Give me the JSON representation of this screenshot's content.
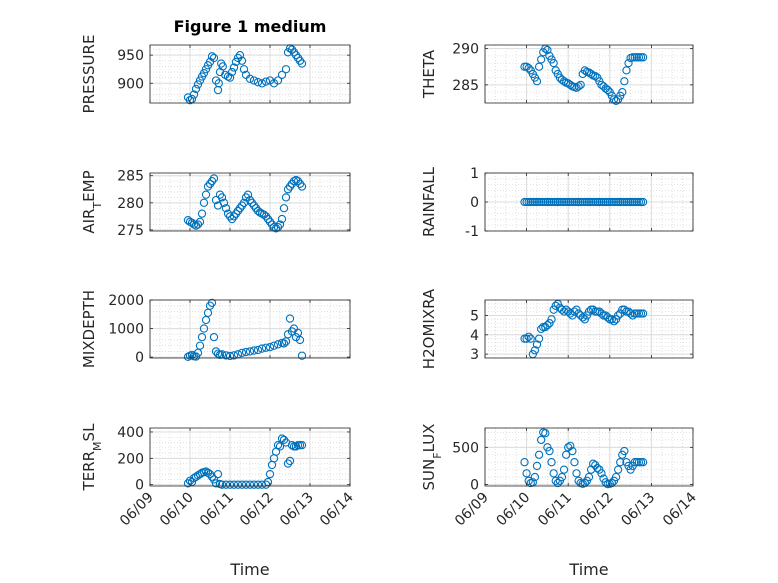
{
  "figure": {
    "title": "Figure 1 medium"
  },
  "chart_data": [
    {
      "type": "scatter",
      "title": "Figure 1 medium",
      "ylabel": "PRESSURE",
      "xlabel": "",
      "xlim": [
        0,
        5
      ],
      "ylim": [
        865,
        968
      ],
      "yticks": [
        900,
        950
      ],
      "ytick_labels": [
        "900",
        "950"
      ],
      "grid": true,
      "series": [
        {
          "x": [
            0.95,
            1.0,
            1.05,
            1.1,
            1.15,
            1.2,
            1.25,
            1.3,
            1.35,
            1.4,
            1.45,
            1.5,
            1.55,
            1.6,
            1.65,
            1.7,
            1.72,
            1.75,
            1.78,
            1.82,
            1.88,
            1.95,
            2.0,
            2.05,
            2.1,
            2.15,
            2.2,
            2.25,
            2.3,
            2.35,
            2.4,
            2.5,
            2.6,
            2.7,
            2.8,
            2.9,
            3.0,
            3.1,
            3.2,
            3.3,
            3.4,
            3.45,
            3.5,
            3.55,
            3.6,
            3.65,
            3.7,
            3.75,
            3.8
          ],
          "y": [
            875,
            870,
            872,
            880,
            890,
            898,
            905,
            912,
            918,
            925,
            932,
            938,
            948,
            945,
            905,
            888,
            900,
            920,
            935,
            930,
            915,
            912,
            910,
            920,
            928,
            938,
            945,
            950,
            940,
            925,
            915,
            908,
            905,
            902,
            900,
            903,
            905,
            900,
            905,
            915,
            925,
            955,
            962,
            960,
            955,
            950,
            945,
            940,
            935
          ]
        }
      ]
    },
    {
      "type": "scatter",
      "ylabel": "THETA",
      "xlabel": "",
      "xlim": [
        0,
        5
      ],
      "ylim": [
        282.5,
        290.5
      ],
      "yticks": [
        285,
        290
      ],
      "ytick_labels": [
        "285",
        "290"
      ],
      "grid": true,
      "series": [
        {
          "x": [
            0.95,
            1.0,
            1.05,
            1.1,
            1.15,
            1.2,
            1.25,
            1.3,
            1.35,
            1.4,
            1.45,
            1.5,
            1.55,
            1.6,
            1.65,
            1.7,
            1.75,
            1.8,
            1.85,
            1.9,
            1.95,
            2.0,
            2.05,
            2.1,
            2.15,
            2.2,
            2.25,
            2.3,
            2.35,
            2.4,
            2.45,
            2.5,
            2.55,
            2.6,
            2.65,
            2.7,
            2.75,
            2.8,
            2.85,
            2.9,
            2.95,
            3.0,
            3.05,
            3.1,
            3.15,
            3.2,
            3.25,
            3.3,
            3.35,
            3.4,
            3.45,
            3.5,
            3.55,
            3.6,
            3.65,
            3.7,
            3.75,
            3.8
          ],
          "y": [
            287.5,
            287.5,
            287.3,
            287.0,
            286.5,
            286.0,
            285.5,
            287.5,
            288.5,
            289.5,
            290.0,
            289.8,
            289.0,
            288.5,
            288.0,
            287.0,
            286.5,
            286.0,
            285.7,
            285.5,
            285.3,
            285.2,
            285.0,
            284.8,
            284.7,
            284.6,
            284.8,
            285.0,
            286.5,
            287.0,
            286.8,
            286.7,
            286.5,
            286.3,
            286.2,
            286.0,
            285.5,
            285.0,
            284.8,
            284.5,
            284.3,
            284.0,
            283.5,
            283.0,
            282.8,
            283.0,
            283.5,
            284.0,
            285.5,
            287.0,
            288.0,
            288.7,
            288.8,
            288.8,
            288.8,
            288.8,
            288.8,
            288.8
          ]
        }
      ]
    },
    {
      "type": "scatter",
      "ylabel": "AIR_TEMP",
      "xlabel": "",
      "xlim": [
        0,
        5
      ],
      "ylim": [
        274.8,
        285.5
      ],
      "yticks": [
        275,
        280,
        285
      ],
      "ytick_labels": [
        "275",
        "280",
        "285"
      ],
      "grid": true,
      "series": [
        {
          "x": [
            0.95,
            1.0,
            1.05,
            1.1,
            1.15,
            1.2,
            1.25,
            1.3,
            1.35,
            1.4,
            1.45,
            1.5,
            1.55,
            1.6,
            1.65,
            1.7,
            1.75,
            1.8,
            1.85,
            1.9,
            1.95,
            2.0,
            2.05,
            2.1,
            2.15,
            2.2,
            2.25,
            2.3,
            2.35,
            2.4,
            2.45,
            2.5,
            2.55,
            2.6,
            2.65,
            2.7,
            2.75,
            2.8,
            2.85,
            2.9,
            2.95,
            3.0,
            3.05,
            3.1,
            3.15,
            3.2,
            3.25,
            3.3,
            3.35,
            3.4,
            3.45,
            3.5,
            3.55,
            3.6,
            3.65,
            3.7,
            3.75,
            3.8
          ],
          "y": [
            276.8,
            276.5,
            276.3,
            276.0,
            275.8,
            276.0,
            276.5,
            278.0,
            280.0,
            281.5,
            283.0,
            283.5,
            284.0,
            284.5,
            280.5,
            279.5,
            281.5,
            281.0,
            280.0,
            279.0,
            278.0,
            277.5,
            277.0,
            277.5,
            278.0,
            278.5,
            279.0,
            279.5,
            280.0,
            281.0,
            281.5,
            280.5,
            280.0,
            279.5,
            279.0,
            278.5,
            278.2,
            278.0,
            277.8,
            277.5,
            277.0,
            276.5,
            276.0,
            275.5,
            275.3,
            275.5,
            276.0,
            277.0,
            279.0,
            281.0,
            282.5,
            283.0,
            283.5,
            284.0,
            284.2,
            284.0,
            283.5,
            283.0
          ]
        }
      ]
    },
    {
      "type": "scatter",
      "ylabel": "RAINFALL",
      "xlabel": "",
      "xlim": [
        0,
        5
      ],
      "ylim": [
        -1,
        1
      ],
      "yticks": [
        -1,
        0,
        1
      ],
      "ytick_labels": [
        "-1",
        "0",
        "1"
      ],
      "grid": true,
      "series": [
        {
          "x": [
            0.95,
            1.0,
            1.05,
            1.1,
            1.15,
            1.2,
            1.25,
            1.3,
            1.35,
            1.4,
            1.45,
            1.5,
            1.55,
            1.6,
            1.65,
            1.7,
            1.75,
            1.8,
            1.85,
            1.9,
            1.95,
            2.0,
            2.05,
            2.1,
            2.15,
            2.2,
            2.25,
            2.3,
            2.35,
            2.4,
            2.45,
            2.5,
            2.55,
            2.6,
            2.65,
            2.7,
            2.75,
            2.8,
            2.85,
            2.9,
            2.95,
            3.0,
            3.05,
            3.1,
            3.15,
            3.2,
            3.25,
            3.3,
            3.35,
            3.4,
            3.45,
            3.5,
            3.55,
            3.6,
            3.65,
            3.7,
            3.75,
            3.8
          ],
          "y": [
            0,
            0,
            0,
            0,
            0,
            0,
            0,
            0,
            0,
            0,
            0,
            0,
            0,
            0,
            0,
            0,
            0,
            0,
            0,
            0,
            0,
            0,
            0,
            0,
            0,
            0,
            0,
            0,
            0,
            0,
            0,
            0,
            0,
            0,
            0,
            0,
            0,
            0,
            0,
            0,
            0,
            0,
            0,
            0,
            0,
            0,
            0,
            0,
            0,
            0,
            0,
            0,
            0,
            0,
            0,
            0,
            0,
            0
          ]
        }
      ]
    },
    {
      "type": "scatter",
      "ylabel": "MIXDEPTH",
      "xlabel": "",
      "xlim": [
        0,
        5
      ],
      "ylim": [
        -30,
        2000
      ],
      "yticks": [
        0,
        1000,
        2000
      ],
      "ytick_labels": [
        "0",
        "1000",
        "2000"
      ],
      "grid": true,
      "series": [
        {
          "x": [
            0.95,
            1.0,
            1.05,
            1.1,
            1.15,
            1.2,
            1.25,
            1.3,
            1.35,
            1.4,
            1.45,
            1.5,
            1.55,
            1.6,
            1.65,
            1.7,
            1.75,
            1.8,
            1.9,
            2.0,
            2.1,
            2.2,
            2.3,
            2.4,
            2.5,
            2.6,
            2.7,
            2.8,
            2.9,
            3.0,
            3.1,
            3.2,
            3.3,
            3.35,
            3.4,
            3.45,
            3.5,
            3.55,
            3.6,
            3.65,
            3.7,
            3.75,
            3.8
          ],
          "y": [
            10,
            50,
            80,
            30,
            20,
            150,
            400,
            700,
            1000,
            1300,
            1550,
            1800,
            1900,
            700,
            200,
            120,
            80,
            100,
            60,
            40,
            60,
            100,
            150,
            180,
            200,
            230,
            250,
            300,
            330,
            350,
            400,
            450,
            500,
            480,
            550,
            800,
            1350,
            900,
            1000,
            700,
            850,
            600,
            50
          ]
        }
      ]
    },
    {
      "type": "scatter",
      "ylabel": "H2OMIXRA",
      "xlabel": "",
      "xlim": [
        0,
        5
      ],
      "ylim": [
        2.8,
        5.8
      ],
      "yticks": [
        3,
        4,
        5
      ],
      "ytick_labels": [
        "3",
        "4",
        "5"
      ],
      "grid": true,
      "series": [
        {
          "x": [
            0.95,
            1.0,
            1.05,
            1.1,
            1.15,
            1.2,
            1.25,
            1.3,
            1.35,
            1.4,
            1.45,
            1.5,
            1.55,
            1.6,
            1.65,
            1.7,
            1.75,
            1.8,
            1.85,
            1.9,
            1.95,
            2.0,
            2.05,
            2.1,
            2.15,
            2.2,
            2.25,
            2.3,
            2.35,
            2.4,
            2.45,
            2.5,
            2.55,
            2.6,
            2.65,
            2.7,
            2.75,
            2.8,
            2.85,
            2.9,
            2.95,
            3.0,
            3.05,
            3.1,
            3.15,
            3.2,
            3.25,
            3.3,
            3.35,
            3.4,
            3.45,
            3.5,
            3.55,
            3.6,
            3.65,
            3.7,
            3.75,
            3.8
          ],
          "y": [
            3.8,
            3.8,
            3.9,
            3.8,
            3.0,
            3.2,
            3.5,
            3.8,
            4.3,
            4.4,
            4.4,
            4.5,
            4.6,
            4.8,
            5.3,
            5.5,
            5.6,
            5.4,
            5.3,
            5.2,
            5.3,
            5.2,
            5.1,
            5.0,
            5.2,
            5.3,
            5.1,
            5.0,
            4.9,
            4.8,
            5.0,
            5.2,
            5.3,
            5.3,
            5.2,
            5.2,
            5.2,
            5.1,
            5.0,
            5.0,
            4.9,
            4.8,
            4.8,
            4.7,
            4.8,
            5.0,
            5.1,
            5.3,
            5.3,
            5.2,
            5.2,
            5.1,
            5.0,
            5.1,
            5.1,
            5.1,
            5.1,
            5.1
          ]
        }
      ]
    },
    {
      "type": "scatter",
      "ylabel": "TERR_MSL",
      "xlabel": "Time",
      "xlim": [
        0,
        5
      ],
      "ylim": [
        -10,
        430
      ],
      "yticks": [
        0,
        200,
        400
      ],
      "ytick_labels": [
        "0",
        "200",
        "400"
      ],
      "xticks": [
        0,
        1,
        2,
        3,
        4,
        5
      ],
      "xtick_labels": [
        "06/09",
        "06/10",
        "06/11",
        "06/12",
        "06/13",
        "06/14"
      ],
      "grid": true,
      "series": [
        {
          "x": [
            0.95,
            1.0,
            1.05,
            1.1,
            1.15,
            1.2,
            1.25,
            1.3,
            1.35,
            1.4,
            1.45,
            1.5,
            1.55,
            1.6,
            1.65,
            1.7,
            1.75,
            1.8,
            1.9,
            2.0,
            2.1,
            2.2,
            2.3,
            2.4,
            2.5,
            2.6,
            2.7,
            2.8,
            2.9,
            2.95,
            3.0,
            3.05,
            3.1,
            3.15,
            3.2,
            3.25,
            3.3,
            3.35,
            3.4,
            3.45,
            3.5,
            3.55,
            3.6,
            3.65,
            3.7,
            3.75,
            3.8
          ],
          "y": [
            10,
            30,
            20,
            50,
            60,
            70,
            80,
            90,
            95,
            100,
            90,
            80,
            60,
            40,
            10,
            80,
            5,
            0,
            0,
            0,
            0,
            0,
            0,
            0,
            0,
            0,
            0,
            0,
            0,
            20,
            80,
            150,
            200,
            250,
            300,
            290,
            350,
            340,
            320,
            160,
            180,
            300,
            290,
            290,
            300,
            300,
            300
          ]
        }
      ]
    },
    {
      "type": "scatter",
      "ylabel": "SUN_FLUX",
      "xlabel": "Time",
      "xlim": [
        0,
        5
      ],
      "ylim": [
        -20,
        760
      ],
      "yticks": [
        0,
        500
      ],
      "ytick_labels": [
        "0",
        "500"
      ],
      "xticks": [
        0,
        1,
        2,
        3,
        4,
        5
      ],
      "xtick_labels": [
        "06/09",
        "06/10",
        "06/11",
        "06/12",
        "06/13",
        "06/14"
      ],
      "grid": true,
      "series": [
        {
          "x": [
            0.95,
            1.0,
            1.05,
            1.1,
            1.15,
            1.2,
            1.25,
            1.3,
            1.35,
            1.4,
            1.45,
            1.5,
            1.55,
            1.6,
            1.65,
            1.7,
            1.75,
            1.8,
            1.85,
            1.9,
            1.95,
            2.0,
            2.05,
            2.1,
            2.15,
            2.2,
            2.25,
            2.3,
            2.35,
            2.4,
            2.45,
            2.5,
            2.55,
            2.6,
            2.65,
            2.7,
            2.75,
            2.8,
            2.85,
            2.9,
            2.95,
            3.0,
            3.05,
            3.1,
            3.15,
            3.2,
            3.25,
            3.3,
            3.35,
            3.4,
            3.45,
            3.5,
            3.55,
            3.6,
            3.65,
            3.7,
            3.75,
            3.8
          ],
          "y": [
            300,
            150,
            50,
            20,
            30,
            100,
            250,
            400,
            600,
            700,
            690,
            500,
            450,
            300,
            150,
            50,
            20,
            50,
            100,
            200,
            400,
            500,
            520,
            450,
            300,
            150,
            50,
            20,
            10,
            20,
            50,
            100,
            200,
            280,
            260,
            220,
            200,
            150,
            80,
            30,
            5,
            10,
            20,
            50,
            100,
            200,
            300,
            400,
            450,
            300,
            250,
            200,
            250,
            300,
            300,
            300,
            300,
            300
          ]
        }
      ]
    }
  ]
}
